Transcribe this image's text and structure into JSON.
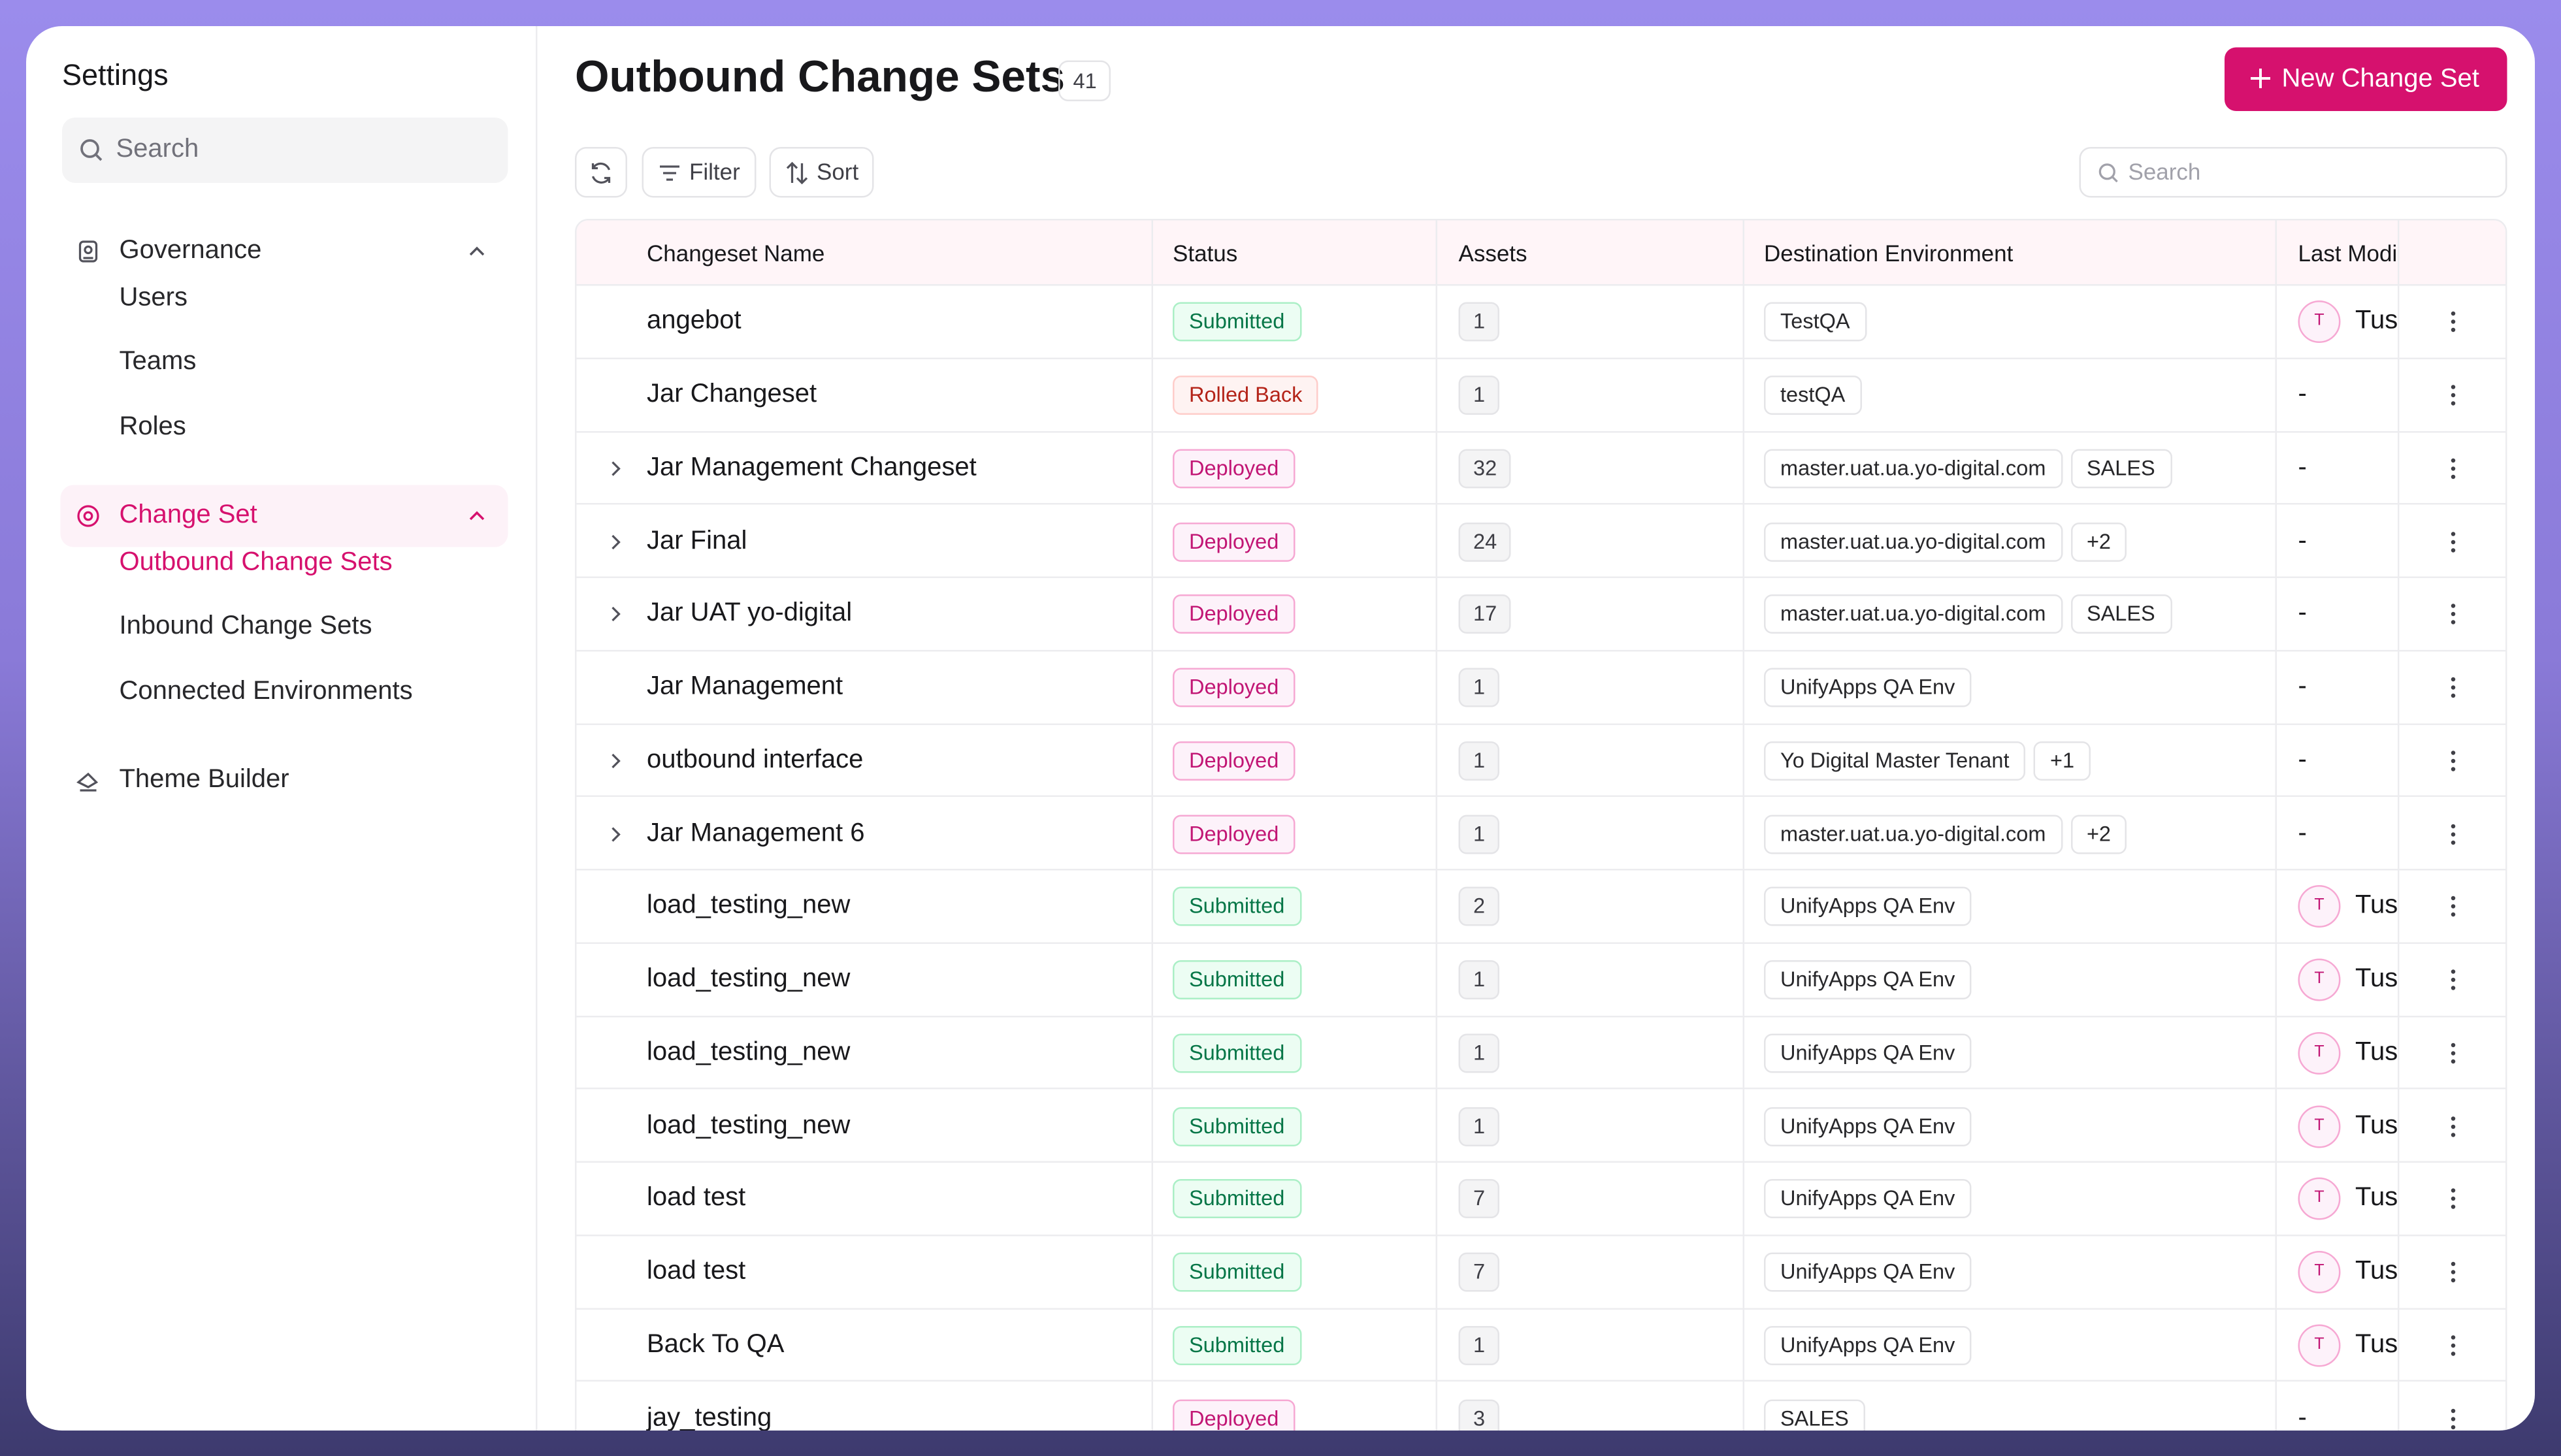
{
  "sidebar": {
    "title": "Settings",
    "search_placeholder": "Search",
    "sections": [
      {
        "label": "Governance",
        "expanded": true,
        "active": false,
        "items": [
          "Users",
          "Teams",
          "Roles"
        ]
      },
      {
        "label": "Change Set",
        "expanded": true,
        "active": true,
        "active_item": 0,
        "items": [
          "Outbound Change Sets",
          "Inbound Change Sets",
          "Connected Environments"
        ]
      },
      {
        "label": "Theme Builder",
        "expanded": false,
        "active": false,
        "items": []
      }
    ]
  },
  "header": {
    "title": "Outbound Change Sets",
    "count": 41,
    "new_button": "New Change Set"
  },
  "toolbar": {
    "filter": "Filter",
    "sort": "Sort",
    "search_placeholder": "Search"
  },
  "table": {
    "columns": [
      "Changeset Name",
      "Status",
      "Assets",
      "Destination Environment",
      "Last Modi"
    ],
    "rows": [
      {
        "name": "angebot",
        "expandable": false,
        "status": "Submitted",
        "status_color": "green",
        "assets": 1,
        "destinations": [
          "TestQA"
        ],
        "modified": {
          "initial": "T",
          "name": "Tus"
        }
      },
      {
        "name": "Jar Changeset",
        "expandable": false,
        "status": "Rolled Back",
        "status_color": "red",
        "assets": 1,
        "destinations": [
          "testQA"
        ],
        "modified": "-"
      },
      {
        "name": "Jar Management Changeset",
        "expandable": true,
        "status": "Deployed",
        "status_color": "pink",
        "assets": 32,
        "destinations": [
          "master.uat.ua.yo-digital.com",
          "SALES"
        ],
        "modified": "-"
      },
      {
        "name": "Jar Final",
        "expandable": true,
        "status": "Deployed",
        "status_color": "pink",
        "assets": 24,
        "destinations": [
          "master.uat.ua.yo-digital.com",
          "+2"
        ],
        "modified": "-"
      },
      {
        "name": "Jar UAT yo-digital",
        "expandable": true,
        "status": "Deployed",
        "status_color": "pink",
        "assets": 17,
        "destinations": [
          "master.uat.ua.yo-digital.com",
          "SALES"
        ],
        "modified": "-"
      },
      {
        "name": "Jar Management",
        "expandable": false,
        "status": "Deployed",
        "status_color": "pink",
        "assets": 1,
        "destinations": [
          "UnifyApps QA Env"
        ],
        "modified": "-"
      },
      {
        "name": "outbound interface",
        "expandable": true,
        "status": "Deployed",
        "status_color": "pink",
        "assets": 1,
        "destinations": [
          "Yo Digital Master Tenant",
          "+1"
        ],
        "modified": "-"
      },
      {
        "name": "Jar Management 6",
        "expandable": true,
        "status": "Deployed",
        "status_color": "pink",
        "assets": 1,
        "destinations": [
          "master.uat.ua.yo-digital.com",
          "+2"
        ],
        "modified": "-"
      },
      {
        "name": "load_testing_new",
        "expandable": false,
        "status": "Submitted",
        "status_color": "green",
        "assets": 2,
        "destinations": [
          "UnifyApps QA Env"
        ],
        "modified": {
          "initial": "T",
          "name": "Tus"
        }
      },
      {
        "name": "load_testing_new",
        "expandable": false,
        "status": "Submitted",
        "status_color": "green",
        "assets": 1,
        "destinations": [
          "UnifyApps QA Env"
        ],
        "modified": {
          "initial": "T",
          "name": "Tus"
        }
      },
      {
        "name": "load_testing_new",
        "expandable": false,
        "status": "Submitted",
        "status_color": "green",
        "assets": 1,
        "destinations": [
          "UnifyApps QA Env"
        ],
        "modified": {
          "initial": "T",
          "name": "Tus"
        }
      },
      {
        "name": "load_testing_new",
        "expandable": false,
        "status": "Submitted",
        "status_color": "green",
        "assets": 1,
        "destinations": [
          "UnifyApps QA Env"
        ],
        "modified": {
          "initial": "T",
          "name": "Tus"
        }
      },
      {
        "name": "load test",
        "expandable": false,
        "status": "Submitted",
        "status_color": "green",
        "assets": 7,
        "destinations": [
          "UnifyApps QA Env"
        ],
        "modified": {
          "initial": "T",
          "name": "Tus"
        }
      },
      {
        "name": "load test",
        "expandable": false,
        "status": "Submitted",
        "status_color": "green",
        "assets": 7,
        "destinations": [
          "UnifyApps QA Env"
        ],
        "modified": {
          "initial": "T",
          "name": "Tus"
        }
      },
      {
        "name": "Back To QA",
        "expandable": false,
        "status": "Submitted",
        "status_color": "green",
        "assets": 1,
        "destinations": [
          "UnifyApps QA Env"
        ],
        "modified": {
          "initial": "T",
          "name": "Tus"
        }
      },
      {
        "name": "jay_testing",
        "expandable": false,
        "status": "Deployed",
        "status_color": "pink",
        "assets": 3,
        "destinations": [
          "SALES"
        ],
        "modified": "-"
      }
    ]
  }
}
